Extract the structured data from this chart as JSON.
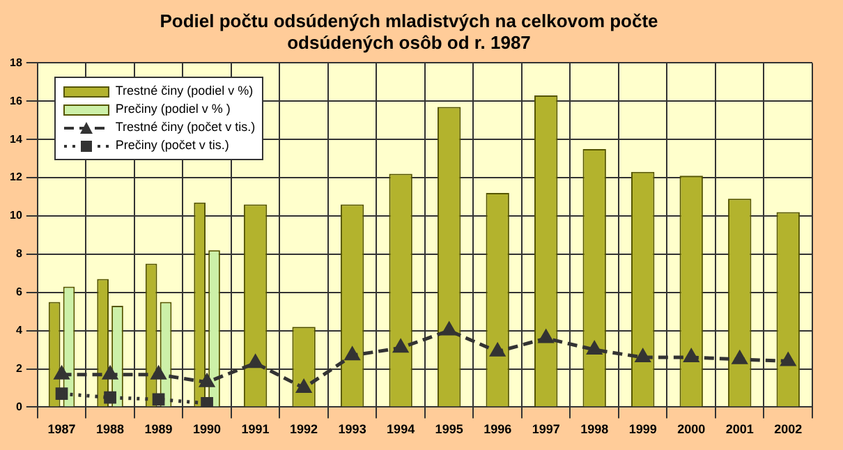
{
  "chart_data": {
    "type": "bar",
    "title": "Podiel počtu odsúdených mladistvých na celkovom počte odsúdených osôb od r. 1987",
    "categories": [
      "1987",
      "1988",
      "1989",
      "1990",
      "1991",
      "1992",
      "1993",
      "1994",
      "1995",
      "1996",
      "1997",
      "1998",
      "1999",
      "2000",
      "2001",
      "2002"
    ],
    "series": [
      {
        "name": "Trestné činy (podiel v %)",
        "color": "#b3b32d",
        "values": [
          5.5,
          6.7,
          7.5,
          10.7,
          10.6,
          4.2,
          10.6,
          12.2,
          15.7,
          11.2,
          16.3,
          13.5,
          12.3,
          12.1,
          10.9,
          10.2
        ]
      },
      {
        "name": "Prečiny (podiel v % )",
        "color": "#ccf0a8",
        "values": [
          6.3,
          5.3,
          5.5,
          8.2,
          null,
          null,
          null,
          null,
          null,
          null,
          null,
          null,
          null,
          null,
          null,
          null
        ]
      },
      {
        "name": "Trestné činy (počet v tis.)",
        "type": "line",
        "color": "#333333",
        "marker": "triangle",
        "line_style": "dashed",
        "values": [
          1.7,
          1.7,
          1.7,
          1.3,
          2.3,
          1.0,
          2.7,
          3.1,
          4.0,
          2.9,
          3.6,
          3.0,
          2.6,
          2.6,
          2.5,
          2.4
        ]
      },
      {
        "name": "Prečiny (počet v tis.)",
        "type": "line",
        "color": "#333333",
        "marker": "square",
        "line_style": "dotted",
        "values": [
          0.7,
          0.5,
          0.4,
          0.2,
          null,
          null,
          null,
          null,
          null,
          null,
          null,
          null,
          null,
          null,
          null,
          null
        ]
      }
    ],
    "ylim": [
      0,
      18
    ],
    "yticks": [
      0,
      2,
      4,
      6,
      8,
      10,
      12,
      14,
      16,
      18
    ],
    "grid": true,
    "legend": "top left"
  }
}
